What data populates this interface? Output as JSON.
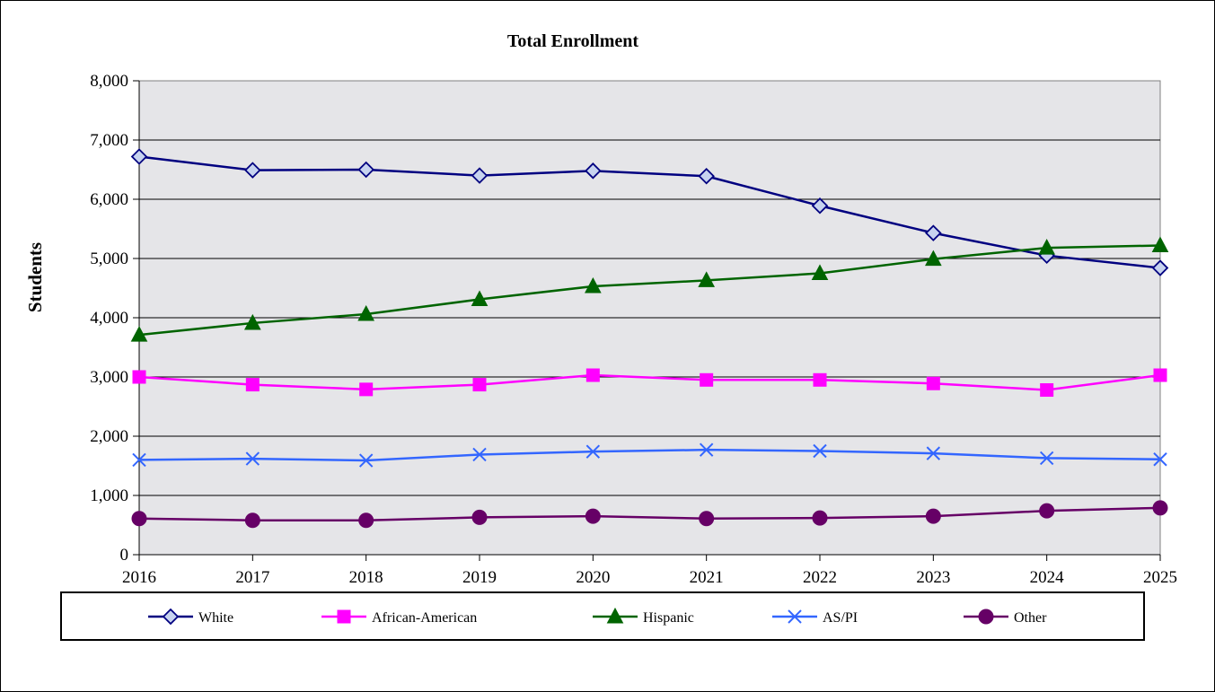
{
  "chart_data": {
    "type": "line",
    "title": "Total Enrollment",
    "xlabel": "",
    "ylabel": "Students",
    "x": [
      "2016",
      "2017",
      "2018",
      "2019",
      "2020",
      "2021",
      "2022",
      "2023",
      "2024",
      "2025"
    ],
    "ylim": [
      0,
      8000
    ],
    "yticks": [
      0,
      1000,
      2000,
      3000,
      4000,
      5000,
      6000,
      7000,
      8000
    ],
    "ytick_labels": [
      "0",
      "1,000",
      "2,000",
      "3,000",
      "4,000",
      "5,000",
      "6,000",
      "7,000",
      "8,000"
    ],
    "grid": true,
    "legend_position": "bottom",
    "series": [
      {
        "name": "White",
        "color": "#000080",
        "marker": "diamond-open",
        "values": [
          6720,
          6490,
          6500,
          6400,
          6480,
          6390,
          5890,
          5430,
          5050,
          4840
        ]
      },
      {
        "name": "African-American",
        "color": "#ff00ff",
        "marker": "square",
        "values": [
          3000,
          2870,
          2790,
          2870,
          3030,
          2950,
          2950,
          2890,
          2780,
          3030
        ]
      },
      {
        "name": "Hispanic",
        "color": "#006400",
        "marker": "triangle",
        "values": [
          3710,
          3910,
          4060,
          4310,
          4530,
          4630,
          4750,
          4990,
          5180,
          5220
        ]
      },
      {
        "name": "AS/PI",
        "color": "#3366ff",
        "marker": "x",
        "values": [
          1600,
          1620,
          1590,
          1690,
          1740,
          1770,
          1750,
          1710,
          1630,
          1610
        ]
      },
      {
        "name": "Other",
        "color": "#660066",
        "marker": "circle",
        "values": [
          610,
          580,
          580,
          630,
          650,
          610,
          620,
          650,
          740,
          790
        ]
      }
    ]
  }
}
